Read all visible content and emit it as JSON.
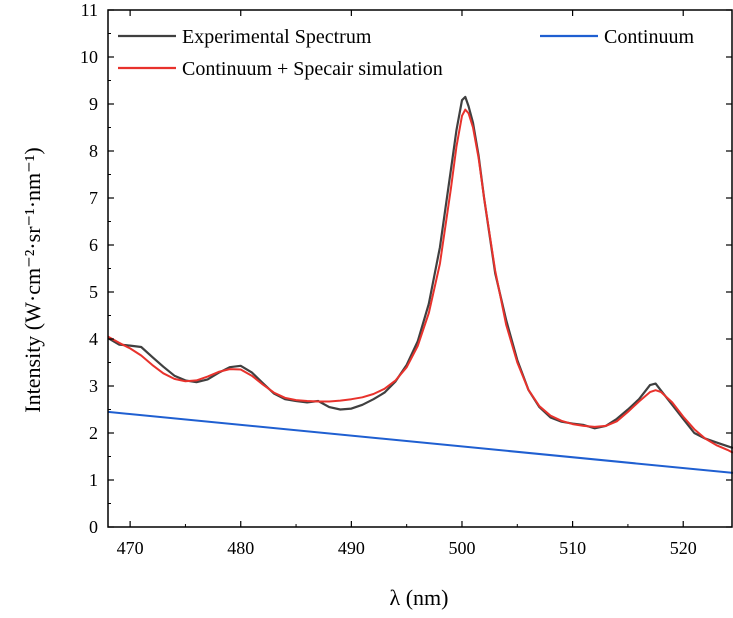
{
  "chart_data": {
    "type": "line",
    "xlabel": "λ (nm)",
    "ylabel": "Intensity (W·cm⁻²·sr⁻¹·nm⁻¹)",
    "xlim": [
      468,
      524.5
    ],
    "ylim": [
      0,
      11
    ],
    "xticks": [
      470,
      480,
      490,
      500,
      510,
      520
    ],
    "yticks": [
      0,
      1,
      2,
      3,
      4,
      5,
      6,
      7,
      8,
      9,
      10,
      11
    ],
    "grid": false,
    "legend_position": "top",
    "series": [
      {
        "name": "Experimental Spectrum",
        "color": "#404040",
        "x": [
          468,
          469,
          470,
          471,
          472,
          473,
          474,
          475,
          476,
          477,
          478,
          479,
          480,
          481,
          482,
          483,
          484,
          485,
          486,
          487,
          488,
          489,
          490,
          491,
          492,
          493,
          494,
          495,
          496,
          497,
          498,
          499,
          499.5,
          500,
          500.3,
          500.6,
          501,
          501.5,
          502,
          503,
          504,
          505,
          506,
          507,
          508,
          509,
          510,
          511,
          512,
          513,
          514,
          515,
          516,
          517,
          517.5,
          518,
          519,
          520,
          521,
          522,
          523,
          524,
          524.5
        ],
        "y": [
          4.02,
          3.88,
          3.86,
          3.83,
          3.62,
          3.41,
          3.22,
          3.12,
          3.08,
          3.14,
          3.28,
          3.4,
          3.43,
          3.29,
          3.06,
          2.84,
          2.72,
          2.68,
          2.65,
          2.68,
          2.55,
          2.5,
          2.52,
          2.6,
          2.72,
          2.86,
          3.1,
          3.45,
          3.95,
          4.75,
          5.95,
          7.6,
          8.45,
          9.08,
          9.15,
          8.95,
          8.6,
          7.9,
          7.0,
          5.4,
          4.4,
          3.55,
          2.92,
          2.55,
          2.33,
          2.24,
          2.2,
          2.17,
          2.1,
          2.15,
          2.3,
          2.5,
          2.72,
          3.02,
          3.05,
          2.9,
          2.6,
          2.3,
          2.0,
          1.88,
          1.8,
          1.72,
          1.68
        ]
      },
      {
        "name": "Continuum + Specair simulation",
        "color": "#e8322c",
        "x": [
          468,
          469,
          470,
          471,
          472,
          473,
          474,
          475,
          476,
          477,
          478,
          479,
          480,
          481,
          482,
          483,
          484,
          485,
          486,
          487,
          488,
          489,
          490,
          491,
          492,
          493,
          494,
          495,
          496,
          497,
          498,
          499,
          499.5,
          500,
          500.3,
          500.6,
          501,
          501.5,
          502,
          503,
          504,
          505,
          506,
          507,
          508,
          509,
          510,
          511,
          512,
          513,
          514,
          515,
          516,
          517,
          517.5,
          518,
          519,
          520,
          521,
          522,
          523,
          524,
          524.5
        ],
        "y": [
          4.05,
          3.92,
          3.8,
          3.65,
          3.45,
          3.27,
          3.15,
          3.1,
          3.12,
          3.2,
          3.3,
          3.36,
          3.35,
          3.22,
          3.03,
          2.86,
          2.75,
          2.7,
          2.68,
          2.67,
          2.67,
          2.69,
          2.72,
          2.76,
          2.83,
          2.94,
          3.12,
          3.4,
          3.85,
          4.55,
          5.6,
          7.2,
          8.1,
          8.75,
          8.88,
          8.8,
          8.5,
          7.85,
          7.0,
          5.45,
          4.3,
          3.5,
          2.92,
          2.57,
          2.37,
          2.26,
          2.19,
          2.15,
          2.13,
          2.15,
          2.25,
          2.45,
          2.67,
          2.87,
          2.91,
          2.87,
          2.65,
          2.35,
          2.08,
          1.88,
          1.74,
          1.64,
          1.58
        ]
      },
      {
        "name": "Continuum",
        "color": "#1f5fd1",
        "x": [
          468,
          524.5
        ],
        "y": [
          2.45,
          1.15
        ]
      }
    ]
  }
}
